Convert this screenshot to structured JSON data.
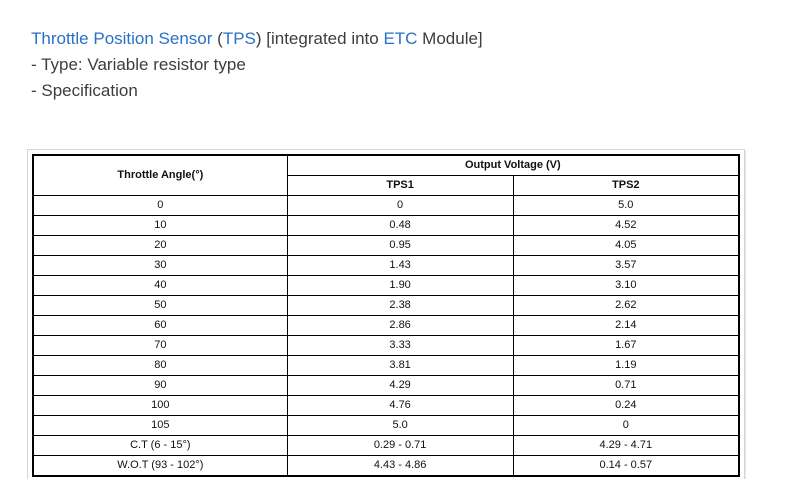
{
  "colors": {
    "accent_blue": "#2970c8",
    "text_dark": "#3d3d3d",
    "table_border_black": "#000000",
    "outer_box_border": "#d4d4d4"
  },
  "header": {
    "title_segments": [
      {
        "text": "Throttle Position Sensor",
        "color": "blue"
      },
      {
        "text": " (",
        "color": "dark"
      },
      {
        "text": "TPS",
        "color": "blue"
      },
      {
        "text": ") [integrated into ",
        "color": "dark"
      },
      {
        "text": "ETC",
        "color": "blue"
      },
      {
        "text": " Module]",
        "color": "dark"
      }
    ],
    "line_type": "- Type: Variable resistor type",
    "line_spec": "- Specification"
  },
  "table": {
    "col1_header": "Throttle Angle(°)",
    "group_header": "Output Voltage (V)",
    "sub_headers": [
      "TPS1",
      "TPS2"
    ],
    "rows": [
      [
        "0",
        "0",
        "5.0"
      ],
      [
        "10",
        "0.48",
        "4.52"
      ],
      [
        "20",
        "0.95",
        "4.05"
      ],
      [
        "30",
        "1.43",
        "3.57"
      ],
      [
        "40",
        "1.90",
        "3.10"
      ],
      [
        "50",
        "2.38",
        "2.62"
      ],
      [
        "60",
        "2.86",
        "2.14"
      ],
      [
        "70",
        "3.33",
        "1.67"
      ],
      [
        "80",
        "3.81",
        "1.19"
      ],
      [
        "90",
        "4.29",
        "0.71"
      ],
      [
        "100",
        "4.76",
        "0.24"
      ],
      [
        "105",
        "5.0",
        "0"
      ],
      [
        "C.T (6 - 15°)",
        "0.29 - 0.71",
        "4.29 - 4.71"
      ],
      [
        "W.O.T (93 - 102°)",
        "4.43 - 4.86",
        "0.14 - 0.57"
      ]
    ]
  }
}
